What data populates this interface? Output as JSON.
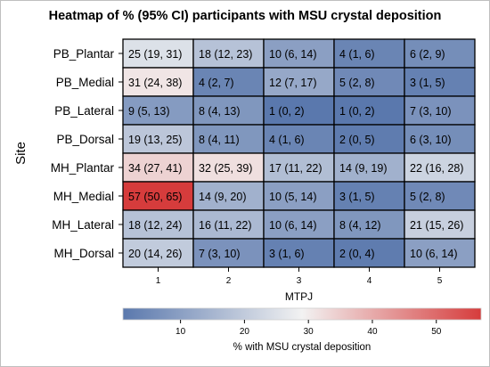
{
  "chart_data": {
    "type": "heatmap",
    "title": "Heatmap of % (95% CI) participants with MSU crystal deposition",
    "xlabel": "MTPJ",
    "ylabel": "Site",
    "colorbar_label": "% with MSU crystal deposition",
    "x": [
      "1",
      "2",
      "3",
      "4",
      "5"
    ],
    "y": [
      "PB_Plantar",
      "PB_Medial",
      "PB_Lateral",
      "PB_Dorsal",
      "MH_Plantar",
      "MH_Medial",
      "MH_Lateral",
      "MH_Dorsal"
    ],
    "values": [
      [
        25,
        18,
        10,
        4,
        6
      ],
      [
        31,
        4,
        12,
        5,
        3
      ],
      [
        9,
        8,
        1,
        1,
        7
      ],
      [
        19,
        8,
        4,
        2,
        6
      ],
      [
        34,
        32,
        17,
        14,
        22
      ],
      [
        57,
        14,
        10,
        3,
        5
      ],
      [
        18,
        16,
        10,
        8,
        21
      ],
      [
        20,
        7,
        3,
        2,
        10
      ]
    ],
    "cell_labels": [
      [
        "25 (19, 31)",
        "18 (12, 23)",
        "10 (6, 14)",
        "4 (1, 6)",
        "6 (2, 9)"
      ],
      [
        "31 (24, 38)",
        "4 (2, 7)",
        "12 (7, 17)",
        "5 (2, 8)",
        "3 (1, 5)"
      ],
      [
        "9 (5, 13)",
        "8 (4, 13)",
        "1 (0, 2)",
        "1 (0, 2)",
        "7 (3, 10)"
      ],
      [
        "19 (13, 25)",
        "8 (4, 11)",
        "4 (1, 6)",
        "2 (0, 5)",
        "6 (3, 10)"
      ],
      [
        "34 (27, 41)",
        "32 (25, 39)",
        "17 (11, 22)",
        "14 (9, 19)",
        "22 (16, 28)"
      ],
      [
        "57 (50, 65)",
        "14 (9, 20)",
        "10 (5, 14)",
        "3 (1, 5)",
        "5 (2, 8)"
      ],
      [
        "18 (12, 24)",
        "16 (11, 22)",
        "10 (6, 14)",
        "8 (4, 12)",
        "21 (15, 26)"
      ],
      [
        "20 (14, 26)",
        "7 (3, 10)",
        "3 (1, 6)",
        "2 (0, 4)",
        "10 (6, 14)"
      ]
    ],
    "color_range": [
      1,
      57
    ],
    "colorbar_ticks": [
      10,
      20,
      30,
      40,
      50
    ],
    "colors": {
      "low": "#5a78ad",
      "mid": "#f2f2f2",
      "high": "#d63c3c"
    },
    "grid": false,
    "legend": "bottom"
  }
}
